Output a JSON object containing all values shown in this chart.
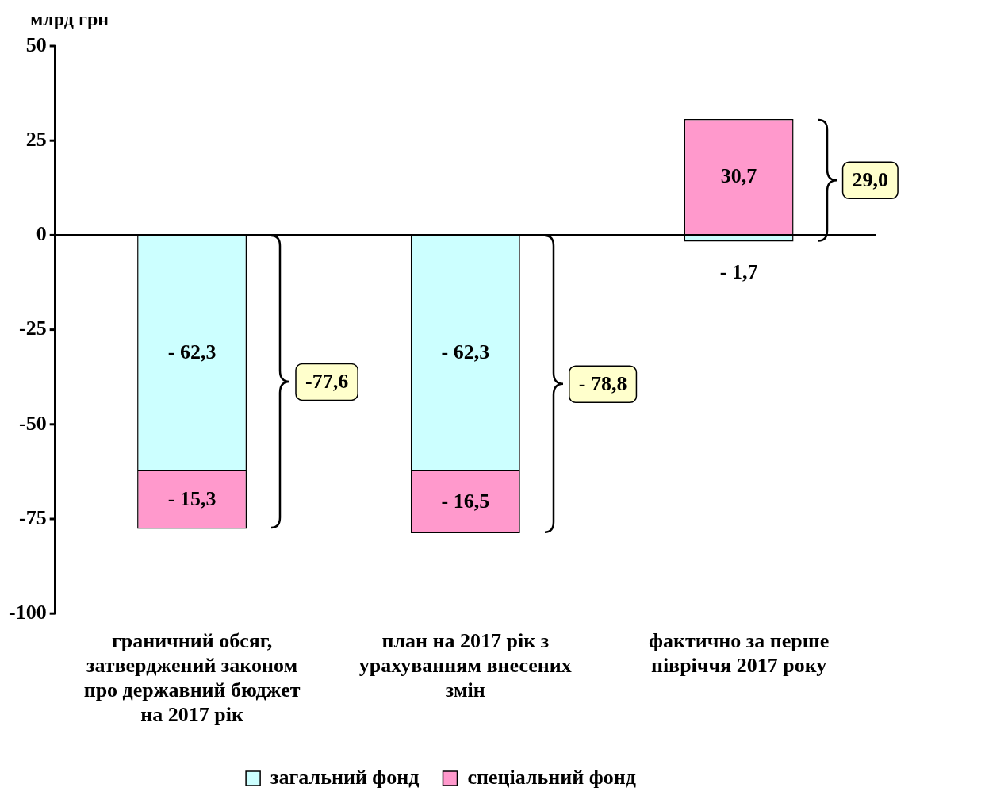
{
  "chart_data": {
    "type": "bar",
    "stacked": true,
    "ylabel": "млрд грн",
    "categories": [
      "граничний обсяг, затверджений законом про державний бюджет на 2017 рік",
      "план на 2017 рік з урахуванням внесених змін",
      "фактично за перше півріччя 2017 року"
    ],
    "series": [
      {
        "name": "загальний фонд",
        "color": "#ccffff",
        "values": [
          -62.3,
          -62.3,
          -1.7
        ],
        "value_labels": [
          "- 62,3",
          "- 62,3",
          "- 1,7"
        ]
      },
      {
        "name": "спеціальний фонд",
        "color": "#ff99cc",
        "values": [
          -15.3,
          -16.5,
          30.7
        ],
        "value_labels": [
          "- 15,3",
          "- 16,5",
          "30,7"
        ]
      }
    ],
    "totals": [
      "-77,6",
      "- 78,8",
      "29,0"
    ],
    "ref_lines": [
      {
        "axis": "y",
        "value": 0,
        "color": "#000000"
      }
    ],
    "ylim": [
      -100,
      50
    ],
    "yticks": [
      -100,
      -75,
      -50,
      -25,
      0,
      25,
      50
    ],
    "grid": false,
    "legend": "bottom"
  }
}
